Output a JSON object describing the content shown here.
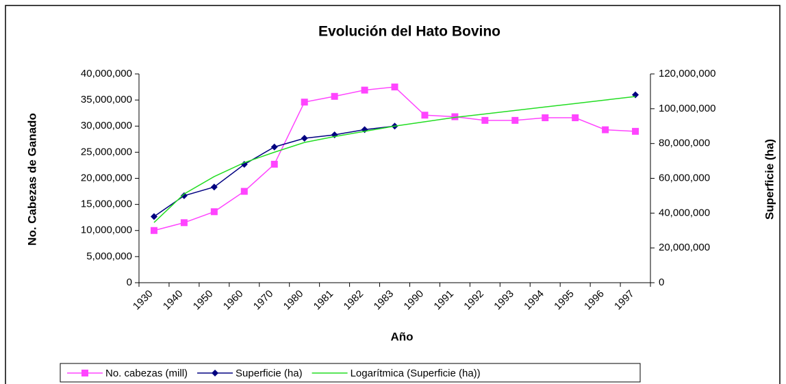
{
  "chart_data": {
    "type": "line",
    "title": "Evolución del Hato Bovino",
    "x_label": "Año",
    "y_label": "No. Cabezas de Ganado",
    "y2_label": "Superficie (ha)",
    "categories": [
      "1930",
      "1940",
      "1950",
      "1960",
      "1970",
      "1980",
      "1981",
      "1982",
      "1983",
      "1990",
      "1991",
      "1992",
      "1993",
      "1994",
      "1995",
      "1996",
      "1997"
    ],
    "series": [
      {
        "name": "No. cabezas (mill)",
        "color": "#ff44ff",
        "marker": "square",
        "values": [
          10000000,
          11500000,
          13600000,
          17500000,
          22700000,
          34600000,
          35700000,
          36900000,
          37500000,
          32100000,
          31800000,
          31100000,
          31100000,
          31600000,
          31600000,
          29300000,
          29000000
        ]
      },
      {
        "name": "Superficie (ha)",
        "color": "#000080",
        "marker": "diamond",
        "axis": "y2",
        "values": [
          38000000,
          50000000,
          55000000,
          68000000,
          78000000,
          83000000,
          85000000,
          88000000,
          90000000,
          null,
          null,
          null,
          null,
          null,
          null,
          null,
          108000000
        ]
      },
      {
        "name": "Logarítmica (Superficie (ha))",
        "color": "#22dd22",
        "marker": "none",
        "axis": "y2",
        "values": [
          34600000,
          51000000,
          61000000,
          69000000,
          75000000,
          80600000,
          84000000,
          87000000,
          90000000,
          92500000,
          95000000,
          97000000,
          99000000,
          101000000,
          103000000,
          105000000,
          107000000
        ]
      }
    ],
    "ylim": [
      0,
      40000000
    ],
    "yticks": [
      {
        "value": 0,
        "label": "0"
      },
      {
        "value": 5000000,
        "label": "5,000,000"
      },
      {
        "value": 10000000,
        "label": "10,000,000"
      },
      {
        "value": 15000000,
        "label": "15,000,000"
      },
      {
        "value": 20000000,
        "label": "20,000,000"
      },
      {
        "value": 25000000,
        "label": "25,000,000"
      },
      {
        "value": 30000000,
        "label": "30,000,000"
      },
      {
        "value": 35000000,
        "label": "35,000,000"
      },
      {
        "value": 40000000,
        "label": "40,000,000"
      }
    ],
    "y2lim": [
      0,
      120000000
    ],
    "y2ticks": [
      {
        "value": 0,
        "label": "0"
      },
      {
        "value": 20000000,
        "label": "20,000,000"
      },
      {
        "value": 40000000,
        "label": "40,000,000"
      },
      {
        "value": 60000000,
        "label": "60,000,000"
      },
      {
        "value": 80000000,
        "label": "80,000,000"
      },
      {
        "value": 100000000,
        "label": "100,000,000"
      },
      {
        "value": 120000000,
        "label": "120,000,000"
      }
    ],
    "legend": "bottom"
  }
}
